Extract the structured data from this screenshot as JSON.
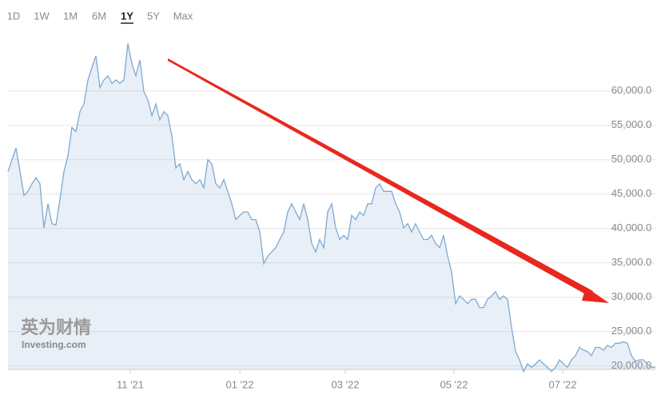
{
  "range_buttons": [
    "1D",
    "1W",
    "1M",
    "6M",
    "1Y",
    "5Y",
    "Max"
  ],
  "selected_range": "1Y",
  "watermark": {
    "title": "英为财情",
    "subtitle": "Investing.com"
  },
  "chart_data": {
    "type": "area",
    "color": "#7fa9d1",
    "ylim": [
      19500,
      70000
    ],
    "yticks": [
      {
        "value": 20000,
        "label": "20,000.0"
      },
      {
        "value": 25000,
        "label": "25,000.0"
      },
      {
        "value": 30000,
        "label": "30,000.0"
      },
      {
        "value": 35000,
        "label": "35,000.0"
      },
      {
        "value": 40000,
        "label": "40,000.0"
      },
      {
        "value": 45000,
        "label": "45,000.0"
      },
      {
        "value": 50000,
        "label": "50,000.0"
      },
      {
        "value": 55000,
        "label": "55,000.0"
      },
      {
        "value": 60000,
        "label": "60,000.0"
      }
    ],
    "xlim": [
      0,
      162
    ],
    "xticks": [
      {
        "value": 30.6,
        "label": "11 '21"
      },
      {
        "value": 58,
        "label": "01 '22"
      },
      {
        "value": 84.4,
        "label": "03 '22"
      },
      {
        "value": 111.6,
        "label": "05 '22"
      },
      {
        "value": 138.8,
        "label": "07 '22"
      }
    ],
    "grid": true,
    "values": [
      48300,
      50000,
      51700,
      48300,
      44800,
      45400,
      46500,
      47400,
      46500,
      40100,
      43600,
      40700,
      40500,
      44200,
      48300,
      50600,
      54700,
      54100,
      57000,
      58100,
      61600,
      63400,
      65100,
      60500,
      61600,
      62200,
      61100,
      61600,
      61100,
      61600,
      66900,
      64000,
      62200,
      64500,
      59900,
      58700,
      56400,
      58100,
      55800,
      57000,
      56400,
      53500,
      48800,
      49400,
      47100,
      48300,
      47100,
      46500,
      47100,
      45900,
      50000,
      49400,
      46500,
      45900,
      47100,
      45400,
      43600,
      41300,
      41900,
      42400,
      42400,
      41300,
      41300,
      39500,
      34900,
      36000,
      36600,
      37200,
      38400,
      39500,
      42400,
      43600,
      42400,
      41300,
      43600,
      41300,
      37800,
      36600,
      38400,
      37200,
      42400,
      43600,
      40100,
      38400,
      39000,
      38400,
      41900,
      41300,
      42400,
      41900,
      43600,
      43600,
      45900,
      46500,
      45400,
      45400,
      45400,
      43600,
      42400,
      40100,
      40700,
      39500,
      40700,
      39500,
      38400,
      38400,
      39000,
      37800,
      37200,
      39000,
      36000,
      33700,
      29100,
      30200,
      29700,
      29100,
      29700,
      29700,
      28500,
      28500,
      29700,
      30200,
      30800,
      29700,
      30200,
      29700,
      25600,
      22100,
      20900,
      19200,
      20300,
      19800,
      20300,
      20900,
      20300,
      19800,
      19200,
      19800,
      20900,
      20300,
      19800,
      20900,
      21500,
      22700,
      22300,
      22100,
      21500,
      22700,
      22700,
      22300,
      23000,
      22700,
      23300,
      23300,
      23500,
      23300,
      21500,
      20700,
      20900,
      20900,
      20300,
      19800,
      19800
    ]
  }
}
